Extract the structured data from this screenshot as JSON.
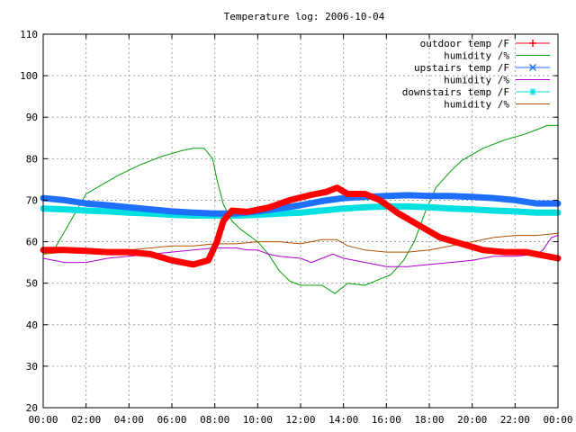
{
  "chart_data": {
    "type": "line",
    "title": "Temperature log: 2006-10-04",
    "xlabel": "",
    "ylabel": "",
    "xlim": [
      0,
      24
    ],
    "ylim": [
      20,
      110
    ],
    "x_ticks": [
      "00:00",
      "02:00",
      "04:00",
      "06:00",
      "08:00",
      "10:00",
      "12:00",
      "14:00",
      "16:00",
      "18:00",
      "20:00",
      "22:00",
      "00:00"
    ],
    "y_ticks": [
      "20",
      "30",
      "40",
      "50",
      "60",
      "70",
      "80",
      "90",
      "100",
      "110"
    ],
    "grid": true,
    "legend_position": "top-right",
    "series": [
      {
        "name": "outdoor temp /F",
        "color": "#ff0000",
        "style": "thick-markers",
        "points": [
          [
            0,
            58
          ],
          [
            1,
            58
          ],
          [
            2,
            57.8
          ],
          [
            3,
            57.5
          ],
          [
            4,
            57.5
          ],
          [
            5,
            57
          ],
          [
            6,
            55.5
          ],
          [
            7,
            54.5
          ],
          [
            7.7,
            55.5
          ],
          [
            8.1,
            60
          ],
          [
            8.4,
            65
          ],
          [
            8.8,
            67.5
          ],
          [
            9.5,
            67.2
          ],
          [
            10.5,
            68.2
          ],
          [
            11.5,
            70
          ],
          [
            12.5,
            71.3
          ],
          [
            13.2,
            72
          ],
          [
            13.7,
            73
          ],
          [
            14.2,
            71.5
          ],
          [
            15,
            71.5
          ],
          [
            15.7,
            70
          ],
          [
            16.5,
            67
          ],
          [
            17.5,
            64
          ],
          [
            18.5,
            61
          ],
          [
            19.5,
            59.5
          ],
          [
            20.5,
            58
          ],
          [
            21.5,
            57.5
          ],
          [
            22.5,
            57.5
          ],
          [
            23,
            57
          ],
          [
            24,
            56
          ]
        ]
      },
      {
        "name": "humidity /%",
        "color": "#00a000",
        "style": "thin",
        "points": [
          [
            0,
            57
          ],
          [
            0.5,
            58
          ],
          [
            1.5,
            67
          ],
          [
            2,
            71.5
          ],
          [
            2.5,
            73
          ],
          [
            3.5,
            76
          ],
          [
            4.5,
            78.5
          ],
          [
            5.5,
            80.5
          ],
          [
            6.5,
            82
          ],
          [
            7,
            82.5
          ],
          [
            7.5,
            82.5
          ],
          [
            7.9,
            80
          ],
          [
            8.1,
            75
          ],
          [
            8.4,
            69
          ],
          [
            8.8,
            65
          ],
          [
            9.2,
            63
          ],
          [
            10,
            60
          ],
          [
            10.5,
            57
          ],
          [
            11,
            53
          ],
          [
            11.5,
            50.5
          ],
          [
            12,
            49.5
          ],
          [
            13,
            49.5
          ],
          [
            13.6,
            47.5
          ],
          [
            14.2,
            50
          ],
          [
            15,
            49.5
          ],
          [
            15.7,
            51
          ],
          [
            16.2,
            52
          ],
          [
            16.8,
            55.5
          ],
          [
            17.3,
            60
          ],
          [
            17.8,
            67
          ],
          [
            18.3,
            73
          ],
          [
            19,
            77
          ],
          [
            19.5,
            79.5
          ],
          [
            20.5,
            82.5
          ],
          [
            21.5,
            84.5
          ],
          [
            22.5,
            86
          ],
          [
            23,
            87
          ],
          [
            23.5,
            88
          ],
          [
            24,
            88
          ]
        ]
      },
      {
        "name": "upstairs temp /F",
        "color": "#1f6fff",
        "style": "thick-markers",
        "points": [
          [
            0,
            70.5
          ],
          [
            1,
            70
          ],
          [
            2,
            69.2
          ],
          [
            3,
            68.8
          ],
          [
            4,
            68.3
          ],
          [
            5,
            67.8
          ],
          [
            6,
            67.3
          ],
          [
            7,
            67
          ],
          [
            8,
            66.8
          ],
          [
            9,
            66.8
          ],
          [
            10,
            67.3
          ],
          [
            11,
            68
          ],
          [
            12,
            68.8
          ],
          [
            13,
            69.8
          ],
          [
            14,
            70.5
          ],
          [
            15,
            70.8
          ],
          [
            16,
            71
          ],
          [
            17,
            71.2
          ],
          [
            18,
            71
          ],
          [
            19,
            71
          ],
          [
            20,
            70.8
          ],
          [
            21,
            70.5
          ],
          [
            22,
            70
          ],
          [
            23,
            69.2
          ],
          [
            24,
            69.2
          ]
        ]
      },
      {
        "name": "humidity /%",
        "color": "#b000d0",
        "style": "thin",
        "points": [
          [
            0,
            56
          ],
          [
            1,
            55
          ],
          [
            2,
            55
          ],
          [
            3,
            56
          ],
          [
            4,
            56.5
          ],
          [
            5,
            57
          ],
          [
            6,
            57.5
          ],
          [
            7,
            58
          ],
          [
            8,
            58.5
          ],
          [
            9,
            58.5
          ],
          [
            9.5,
            58
          ],
          [
            10,
            58
          ],
          [
            10.5,
            57
          ],
          [
            11,
            56.5
          ],
          [
            12,
            56
          ],
          [
            12.5,
            55
          ],
          [
            13,
            56
          ],
          [
            13.5,
            57
          ],
          [
            14,
            56
          ],
          [
            14.5,
            55.5
          ],
          [
            15,
            55
          ],
          [
            15.5,
            54.5
          ],
          [
            16,
            54
          ],
          [
            17,
            54
          ],
          [
            18,
            54.5
          ],
          [
            19,
            55
          ],
          [
            20,
            55.5
          ],
          [
            21,
            56.5
          ],
          [
            22,
            56.5
          ],
          [
            23,
            57
          ],
          [
            23.3,
            58
          ],
          [
            23.7,
            61
          ],
          [
            24,
            61.5
          ]
        ]
      },
      {
        "name": "downstairs temp /F",
        "color": "#00e0e0",
        "style": "thick-markers",
        "points": [
          [
            0,
            68
          ],
          [
            1,
            67.8
          ],
          [
            2,
            67.5
          ],
          [
            3,
            67.3
          ],
          [
            4,
            67
          ],
          [
            5,
            66.8
          ],
          [
            6,
            66.5
          ],
          [
            7,
            66.3
          ],
          [
            8,
            66.3
          ],
          [
            9,
            66.3
          ],
          [
            10,
            66.5
          ],
          [
            11,
            66.8
          ],
          [
            12,
            67
          ],
          [
            13,
            67.5
          ],
          [
            14,
            68
          ],
          [
            15,
            68.3
          ],
          [
            16,
            68.5
          ],
          [
            17,
            68.5
          ],
          [
            18,
            68.3
          ],
          [
            19,
            68
          ],
          [
            20,
            67.8
          ],
          [
            21,
            67.5
          ],
          [
            22,
            67.3
          ],
          [
            23,
            67
          ],
          [
            24,
            67
          ]
        ]
      },
      {
        "name": "humidity /%",
        "color": "#b05000",
        "style": "thin",
        "points": [
          [
            0,
            57
          ],
          [
            1,
            57.5
          ],
          [
            2,
            57.5
          ],
          [
            3,
            58
          ],
          [
            4,
            58
          ],
          [
            5,
            58.5
          ],
          [
            6,
            59
          ],
          [
            7,
            59
          ],
          [
            8,
            59.5
          ],
          [
            9,
            59.5
          ],
          [
            10,
            60
          ],
          [
            11,
            60
          ],
          [
            12,
            59.5
          ],
          [
            13,
            60.5
          ],
          [
            13.7,
            60.5
          ],
          [
            14.2,
            59
          ],
          [
            15,
            58
          ],
          [
            16,
            57.5
          ],
          [
            17,
            57.5
          ],
          [
            18,
            58
          ],
          [
            19,
            59
          ],
          [
            20,
            60
          ],
          [
            21,
            61
          ],
          [
            22,
            61.5
          ],
          [
            23,
            61.5
          ],
          [
            24,
            62
          ]
        ]
      }
    ]
  }
}
